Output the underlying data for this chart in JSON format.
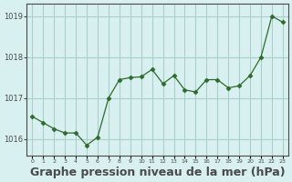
{
  "x": [
    0,
    1,
    2,
    3,
    4,
    5,
    6,
    7,
    8,
    9,
    10,
    11,
    12,
    13,
    14,
    15,
    16,
    17,
    18,
    19,
    20,
    21,
    22,
    23
  ],
  "y": [
    1016.55,
    1016.4,
    1016.25,
    1016.15,
    1016.15,
    1015.85,
    1016.05,
    1017.0,
    1017.45,
    1017.5,
    1017.52,
    1017.7,
    1017.35,
    1017.55,
    1017.2,
    1017.15,
    1017.45,
    1017.45,
    1017.25,
    1017.3,
    1017.55,
    1018.0,
    1019.0,
    1018.85
  ],
  "line_color": "#2d6a2d",
  "marker_color": "#2d6a2d",
  "bg_color": "#d8f0ef",
  "grid_color": "#aad0cc",
  "axis_color": "#4a4a4a",
  "xlabel": "Graphe pression niveau de la mer (hPa)",
  "xlabel_fontsize": 9,
  "ylabel_ticks": [
    1016,
    1017,
    1018,
    1019
  ],
  "xtick_labels": [
    "0",
    "1",
    "2",
    "3",
    "4",
    "5",
    "6",
    "7",
    "8",
    "9",
    "10",
    "11",
    "12",
    "13",
    "14",
    "15",
    "16",
    "17",
    "18",
    "19",
    "20",
    "21",
    "22",
    "23"
  ],
  "ylim": [
    1015.6,
    1019.3
  ],
  "xlim": [
    -0.5,
    23.5
  ]
}
